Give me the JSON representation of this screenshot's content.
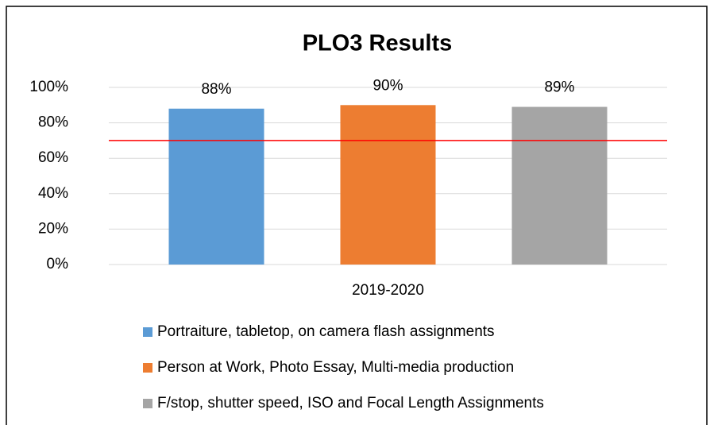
{
  "chart_data": {
    "type": "bar",
    "title": "PLO3 Results",
    "categories": [
      "2019-2020"
    ],
    "series": [
      {
        "name": "Portraiture, tabletop, on camera flash assignments",
        "color": "#5b9bd5",
        "values": [
          88
        ],
        "value_labels": [
          "88%"
        ]
      },
      {
        "name": "Person at Work, Photo Essay, Multi-media production",
        "color": "#ed7d31",
        "values": [
          90
        ],
        "value_labels": [
          "90%"
        ]
      },
      {
        "name": "F/stop, shutter speed, ISO and Focal Length Assignments",
        "color": "#a5a5a5",
        "values": [
          89
        ],
        "value_labels": [
          "89%"
        ]
      }
    ],
    "ylim": [
      0,
      100
    ],
    "yticks": [
      {
        "value": 0,
        "label": "0%"
      },
      {
        "value": 20,
        "label": "20%"
      },
      {
        "value": 40,
        "label": "40%"
      },
      {
        "value": 60,
        "label": "60%"
      },
      {
        "value": 80,
        "label": "80%"
      },
      {
        "value": 100,
        "label": "100%"
      }
    ],
    "grid": true,
    "reference_line": {
      "value": 70,
      "color": "#ff0000"
    },
    "legend": "bottom"
  }
}
